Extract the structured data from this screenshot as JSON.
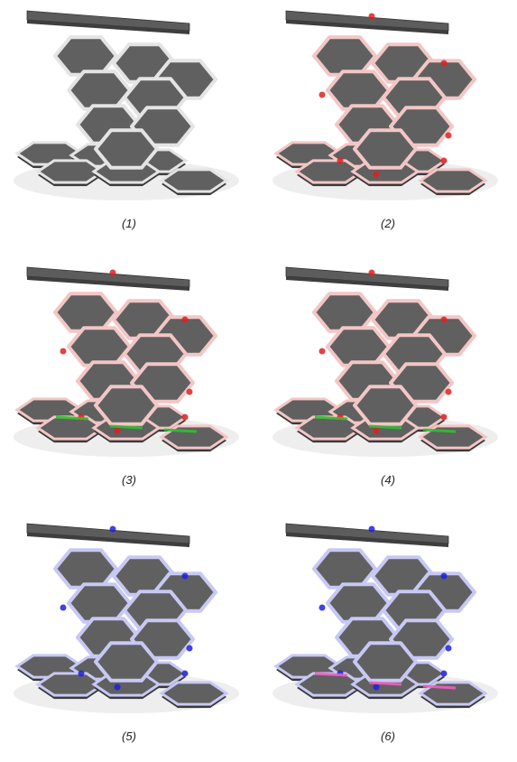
{
  "panels": [
    {
      "caption": "(1)",
      "joint_color": "#e4e4e4",
      "glow": "none"
    },
    {
      "caption": "(2)",
      "joint_color": "#f3c6c6",
      "glow": "#e02020"
    },
    {
      "caption": "(3)",
      "joint_color": "#f3c6c6",
      "glow": "#e02020",
      "accent": "#30c030"
    },
    {
      "caption": "(4)",
      "joint_color": "#f3c6c6",
      "glow": "#e02020",
      "accent": "#30c030"
    },
    {
      "caption": "(5)",
      "joint_color": "#c8c8f4",
      "glow": "#2020e0"
    },
    {
      "caption": "(6)",
      "joint_color": "#c8c8f4",
      "glow": "#2020e0",
      "accent": "#f060c0"
    }
  ],
  "tile_color": "#606060"
}
